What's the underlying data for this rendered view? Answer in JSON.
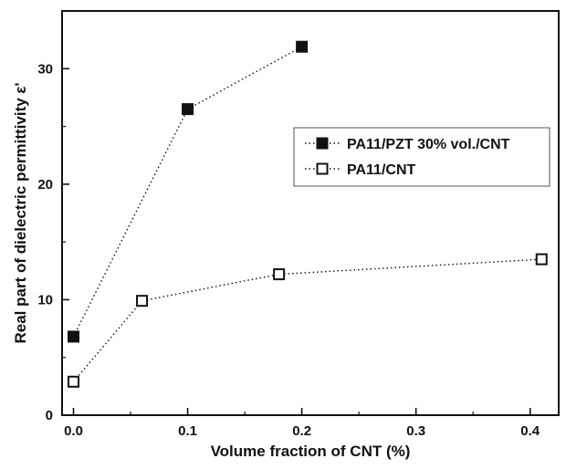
{
  "chart_data": {
    "type": "scatter",
    "title": "",
    "xlabel": "Volume fraction of CNT (%)",
    "ylabel": "Real part of dielectric permittivity ε'",
    "xlim": [
      -0.01,
      0.425
    ],
    "ylim": [
      0,
      35
    ],
    "x_ticks": [
      0.0,
      0.1,
      0.2,
      0.3,
      0.4
    ],
    "x_tick_labels": [
      "0.0",
      "0.1",
      "0.2",
      "0.3",
      "0.4"
    ],
    "y_ticks": [
      0,
      10,
      20,
      30
    ],
    "y_tick_labels": [
      "0",
      "10",
      "20",
      "30"
    ],
    "grid": false,
    "legend_position": "upper-right",
    "series": [
      {
        "name": "PA11/PZT 30% vol./CNT",
        "marker": "filled-square",
        "line": "dotted",
        "color": "#111111",
        "x": [
          0.0,
          0.1,
          0.2
        ],
        "y": [
          6.8,
          26.5,
          31.9
        ]
      },
      {
        "name": "PA11/CNT",
        "marker": "open-square",
        "line": "dotted",
        "color": "#111111",
        "x": [
          0.0,
          0.06,
          0.18,
          0.41
        ],
        "y": [
          2.9,
          9.9,
          12.2,
          13.5
        ]
      }
    ]
  }
}
